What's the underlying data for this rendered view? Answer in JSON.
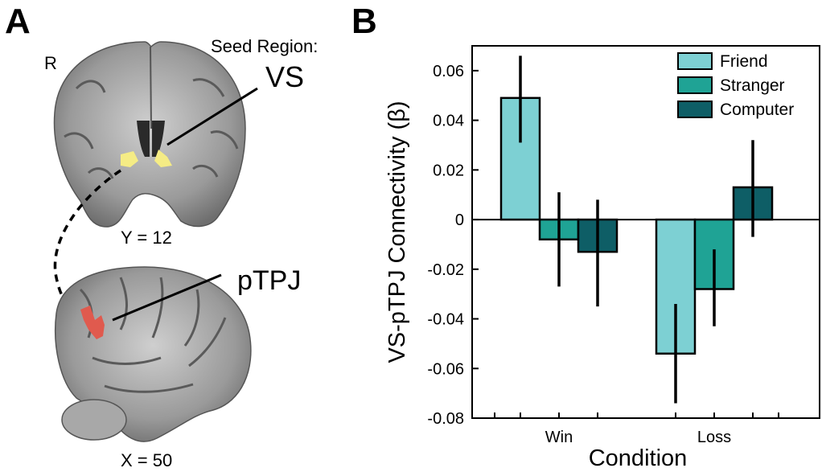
{
  "panel_a": {
    "letter": "A",
    "orientation_label": "R",
    "seed_label": "Seed Region:",
    "seed_name": "VS",
    "coronal_coord": "Y = 12",
    "target_name": "pTPJ",
    "sagittal_coord": "X = 50",
    "colors": {
      "seed": "#f5ec85",
      "target": "#e05a4e"
    }
  },
  "panel_b": {
    "letter": "B"
  },
  "chart_data": {
    "type": "bar",
    "categories": [
      "Win",
      "Loss"
    ],
    "xlabel": "Condition",
    "ylabel": "VS-pTPJ Connectivity (β)",
    "ylim": [
      -0.08,
      0.07
    ],
    "yticks": [
      0.06,
      0.04,
      0.02,
      0,
      -0.02,
      -0.04,
      -0.06,
      -0.08
    ],
    "ytick_labels": [
      "0.06",
      "0.04",
      "0.02",
      "0",
      "-0.02",
      "-0.04",
      "-0.06",
      "-0.08"
    ],
    "legend_position": "top-right",
    "series": [
      {
        "name": "Friend",
        "color": "#7dd0d3",
        "values": [
          0.049,
          -0.054
        ],
        "err_low": [
          0.031,
          -0.074
        ],
        "err_high": [
          0.066,
          -0.034
        ]
      },
      {
        "name": "Stranger",
        "color": "#1fa395",
        "values": [
          -0.008,
          -0.028
        ],
        "err_low": [
          -0.027,
          -0.043
        ],
        "err_high": [
          0.011,
          -0.012
        ]
      },
      {
        "name": "Computer",
        "color": "#0e5e66",
        "values": [
          -0.013,
          0.013
        ],
        "err_low": [
          -0.035,
          -0.007
        ],
        "err_high": [
          0.008,
          0.032
        ]
      }
    ]
  }
}
